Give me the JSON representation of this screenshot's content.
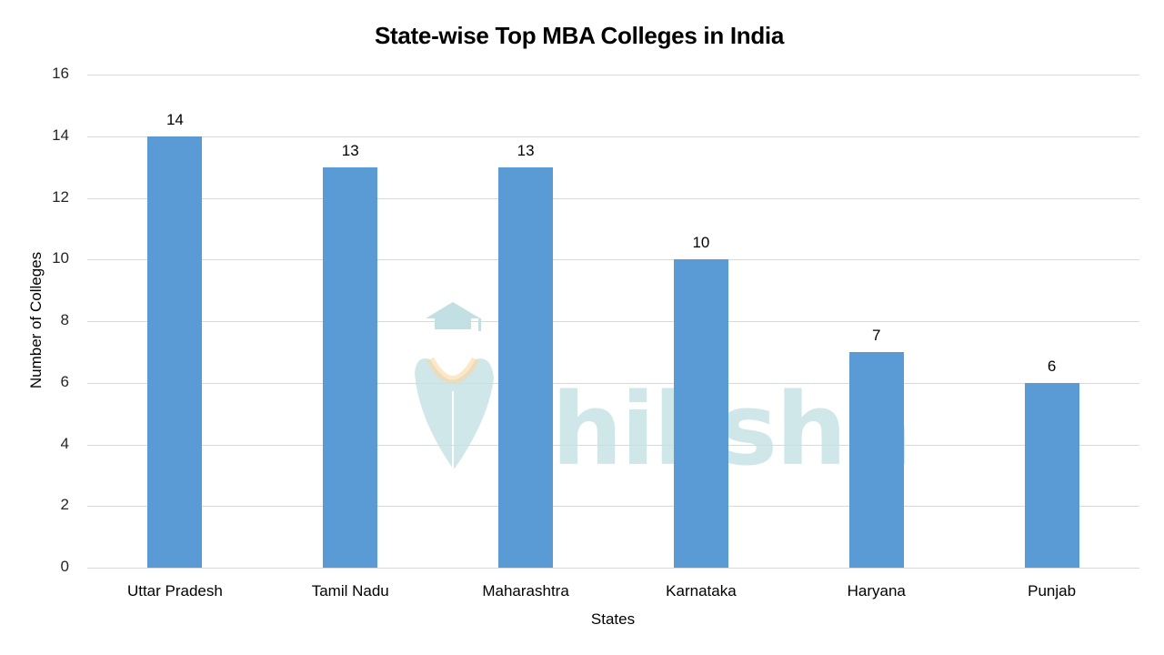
{
  "title": "State-wise Top MBA Colleges in India",
  "watermark": {
    "text": "shiksha",
    "icon": "graduation-cap-logo-icon"
  },
  "colors": {
    "bar": "#5b9bd5",
    "grid": "#d9d9d9",
    "watermark": "#a8d3d9"
  },
  "chart_data": {
    "type": "bar",
    "title": "State-wise Top MBA Colleges in India",
    "xlabel": "States",
    "ylabel": "Number of Colleges",
    "categories": [
      "Uttar Pradesh",
      "Tamil Nadu",
      "Maharashtra",
      "Karnataka",
      "Haryana",
      "Punjab"
    ],
    "values": [
      14,
      13,
      13,
      10,
      7,
      6
    ],
    "ylim": [
      0,
      16
    ],
    "yticks": [
      "0",
      "2",
      "4",
      "6",
      "8",
      "10",
      "12",
      "14",
      "16"
    ],
    "data_labels": [
      "14",
      "13",
      "13",
      "10",
      "7",
      "6"
    ],
    "grid": true,
    "legend": null
  }
}
